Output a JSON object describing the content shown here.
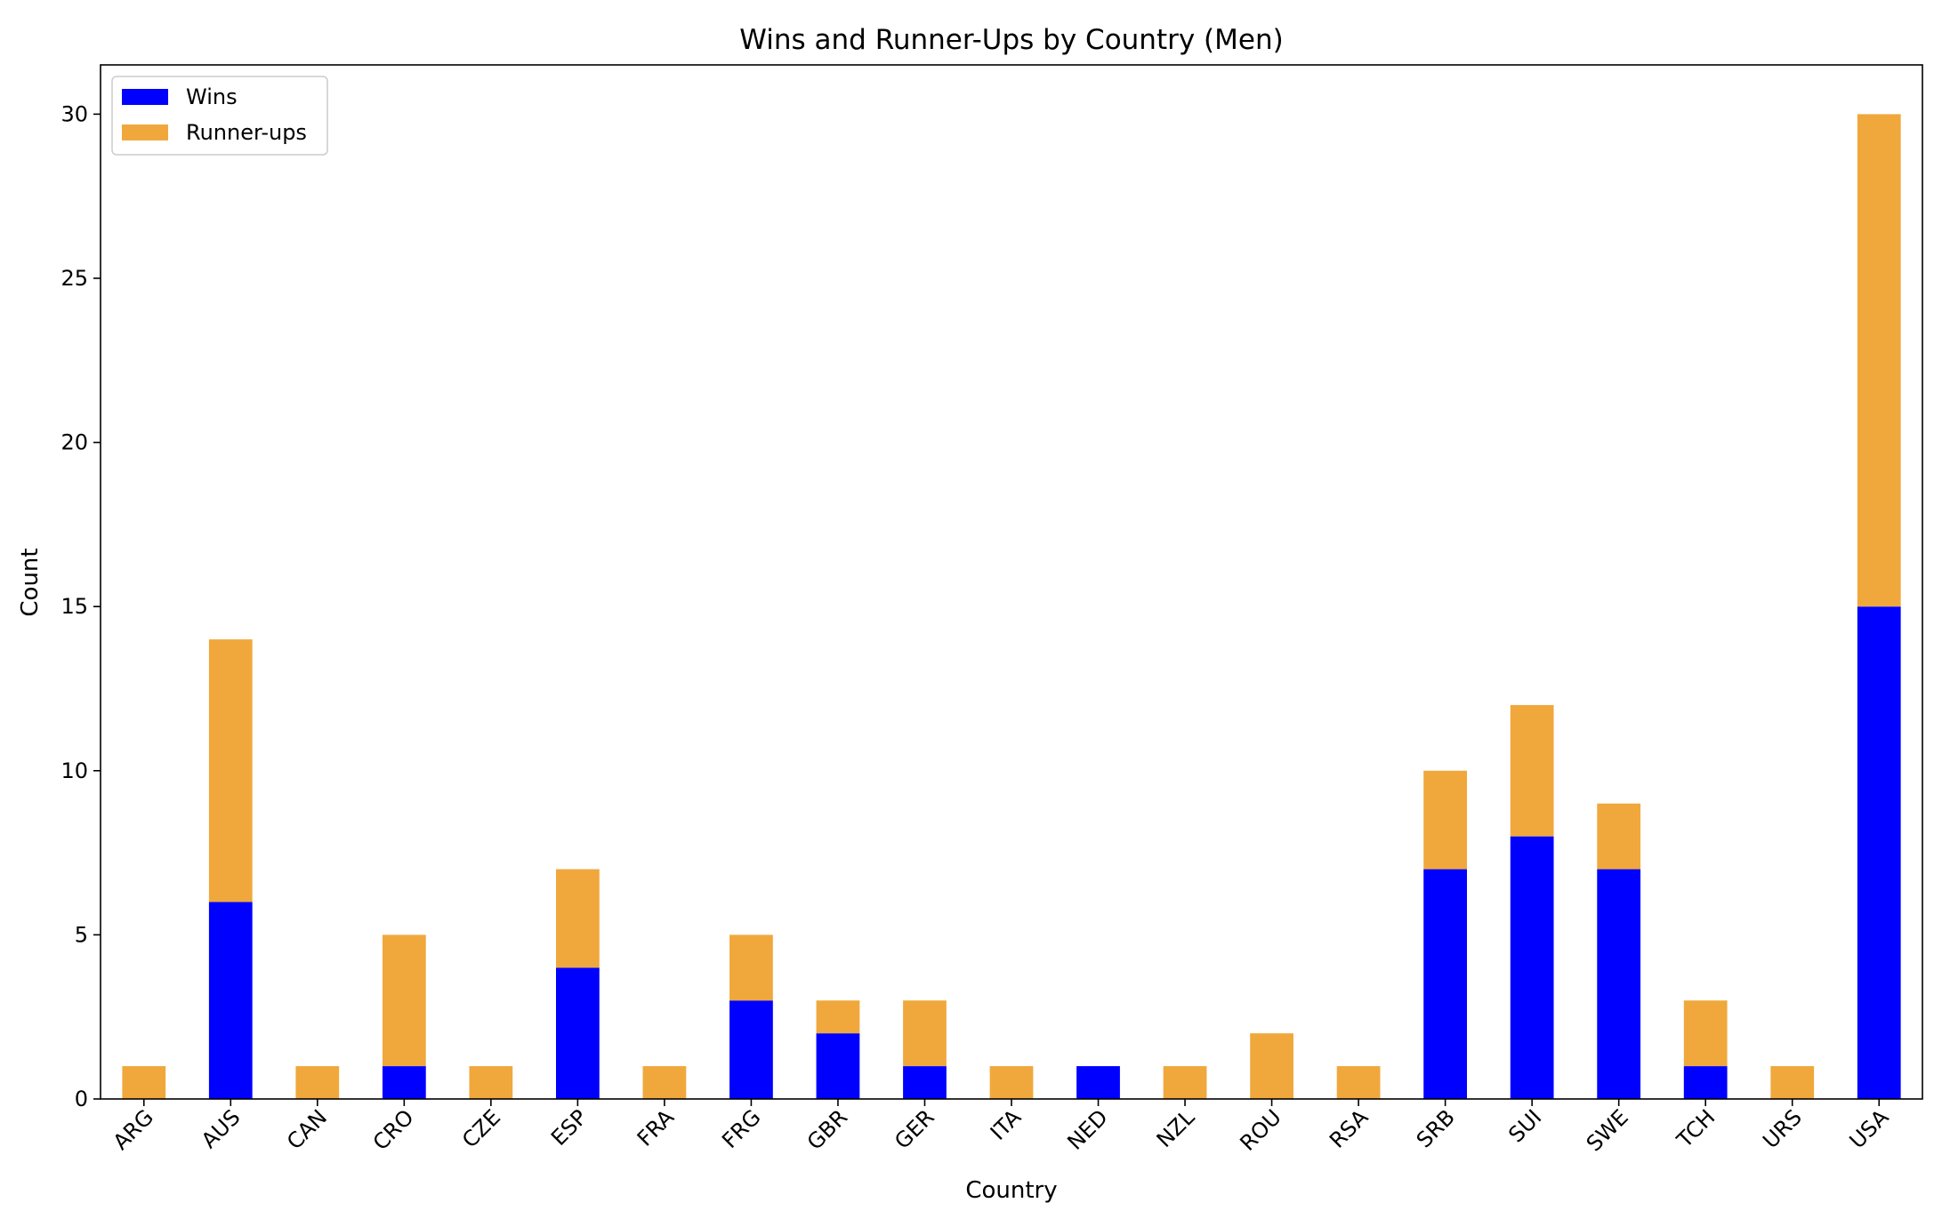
{
  "chart_data": {
    "type": "bar",
    "stacked": true,
    "title": "Wins and Runner-Ups by Country (Men)",
    "xlabel": "Country",
    "ylabel": "Count",
    "ylim": [
      0,
      31.5
    ],
    "yticks": [
      0,
      5,
      10,
      15,
      20,
      25,
      30
    ],
    "grid": false,
    "legend_position": "top-left",
    "categories": [
      "ARG",
      "AUS",
      "CAN",
      "CRO",
      "CZE",
      "ESP",
      "FRA",
      "FRG",
      "GBR",
      "GER",
      "ITA",
      "NED",
      "NZL",
      "ROU",
      "RSA",
      "SRB",
      "SUI",
      "SWE",
      "TCH",
      "URS",
      "USA"
    ],
    "series": [
      {
        "name": "Wins",
        "color": "#0000ff",
        "values": [
          0,
          6,
          0,
          1,
          0,
          4,
          0,
          3,
          2,
          1,
          0,
          1,
          0,
          0,
          0,
          7,
          8,
          7,
          1,
          0,
          15
        ]
      },
      {
        "name": "Runner-ups",
        "color": "#f0a83c",
        "values": [
          1,
          8,
          1,
          4,
          1,
          3,
          1,
          2,
          1,
          2,
          1,
          0,
          1,
          2,
          1,
          3,
          4,
          2,
          2,
          1,
          15
        ]
      }
    ]
  }
}
